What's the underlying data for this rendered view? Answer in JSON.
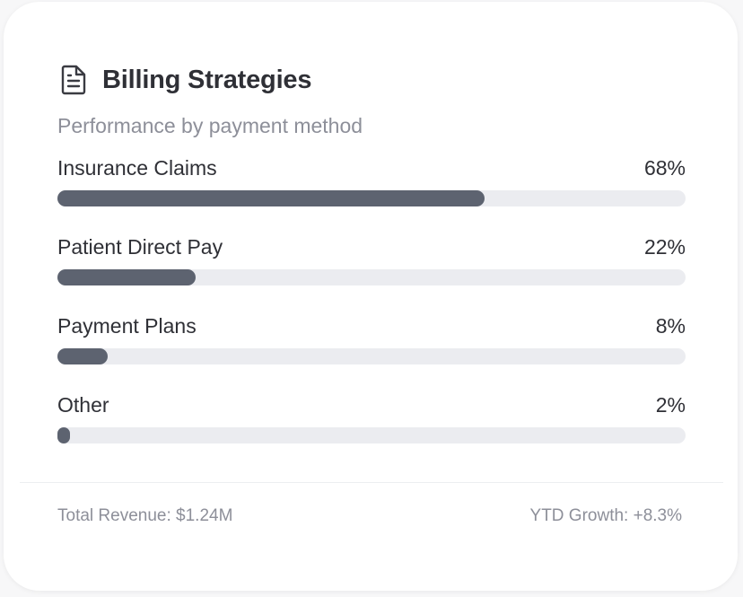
{
  "header": {
    "title": "Billing Strategies",
    "subtitle": "Performance by payment method",
    "icon": "document-icon"
  },
  "rows": [
    {
      "label": "Insurance Claims",
      "value_text": "68%",
      "value": 68
    },
    {
      "label": "Patient Direct Pay",
      "value_text": "22%",
      "value": 22
    },
    {
      "label": "Payment Plans",
      "value_text": "8%",
      "value": 8
    },
    {
      "label": "Other",
      "value_text": "2%",
      "value": 2
    }
  ],
  "footer": {
    "total_revenue": "Total Revenue: $1.24M",
    "ytd_growth": "YTD Growth: +8.3%"
  },
  "colors": {
    "bar_fill": "#5d6370",
    "bar_track": "#ebecf0",
    "text_primary": "#2f3036",
    "text_muted": "#8d8f99"
  }
}
